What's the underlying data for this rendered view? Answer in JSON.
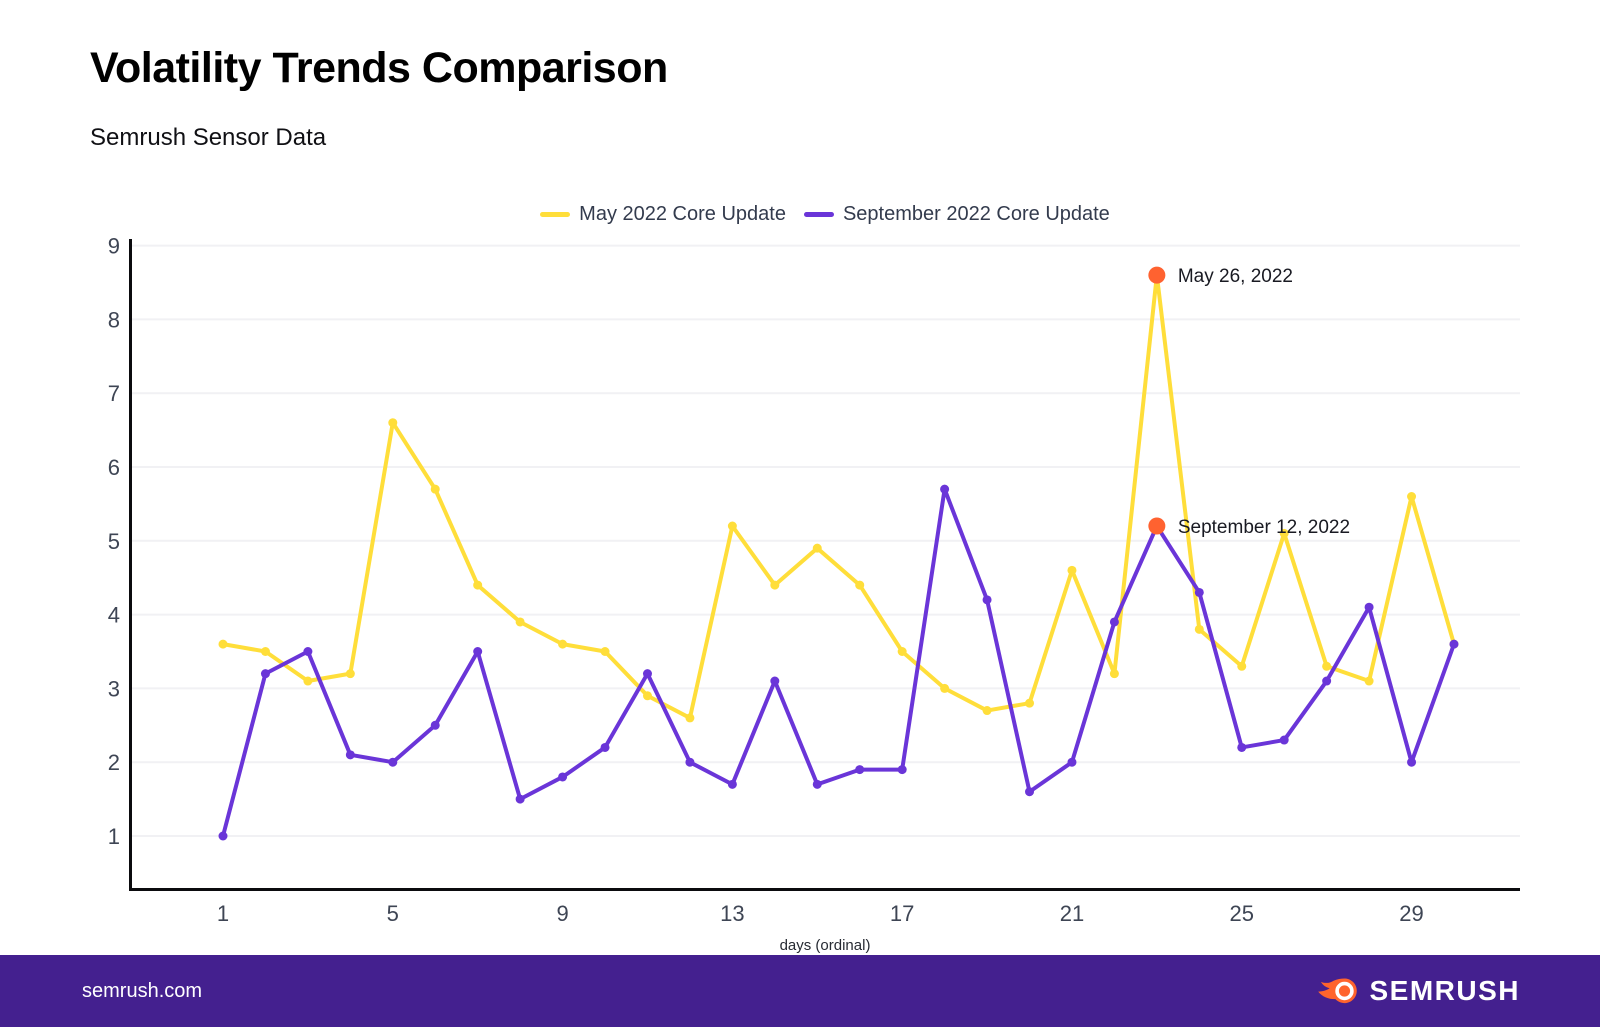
{
  "page": {
    "title": "Volatility Trends Comparison",
    "subtitle": "Semrush Sensor Data"
  },
  "footer": {
    "url": "semrush.com",
    "logo_text": "SEMRUSH",
    "background": "#44208F",
    "logo_orange": "#FF642D"
  },
  "chart_data": {
    "type": "line",
    "title": "Volatility Trends Comparison",
    "subtitle": "Semrush Sensor Data",
    "xlabel": "days (ordinal)",
    "ylabel": "",
    "x": [
      1,
      2,
      3,
      4,
      5,
      6,
      7,
      8,
      9,
      10,
      11,
      12,
      13,
      14,
      15,
      16,
      17,
      18,
      19,
      20,
      21,
      22,
      23,
      24,
      25,
      26,
      27,
      28,
      29,
      30
    ],
    "x_ticks": [
      1,
      5,
      9,
      13,
      17,
      21,
      25,
      29
    ],
    "y_ticks": [
      1,
      2,
      3,
      4,
      5,
      6,
      7,
      8,
      9
    ],
    "ylim": [
      0,
      9
    ],
    "grid": "horizontal",
    "legend_position": "top-center",
    "colors": {
      "axis": "#0B0B0E",
      "gridline": "#F1F1F4",
      "tick_label": "#3E4554",
      "annotation_text": "#191A22",
      "annotation_dot": "#FF6230"
    },
    "series": [
      {
        "name": "May 2022 Core Update",
        "color": "#FFDE3A",
        "values": [
          3.6,
          3.5,
          3.1,
          3.2,
          6.6,
          5.7,
          4.4,
          3.9,
          3.6,
          3.5,
          2.9,
          2.6,
          5.2,
          4.4,
          4.9,
          4.4,
          3.5,
          3.0,
          2.7,
          2.8,
          4.6,
          3.2,
          8.6,
          3.8,
          3.3,
          5.1,
          3.3,
          3.1,
          5.6,
          3.6
        ]
      },
      {
        "name": "September 2022 Core Update",
        "color": "#6A35D8",
        "values": [
          1.0,
          3.2,
          3.5,
          2.1,
          2.0,
          2.5,
          3.5,
          1.5,
          1.8,
          2.2,
          3.2,
          2.0,
          1.7,
          3.1,
          1.7,
          1.9,
          1.9,
          5.7,
          4.2,
          1.6,
          2.0,
          3.9,
          5.2,
          4.3,
          2.2,
          2.3,
          3.1,
          4.1,
          2.0,
          3.6
        ]
      }
    ],
    "annotations": [
      {
        "label": "May 26, 2022",
        "series": 0,
        "x": 23,
        "y": 8.6
      },
      {
        "label": "September 12, 2022",
        "series": 1,
        "x": 23,
        "y": 5.2
      }
    ]
  }
}
